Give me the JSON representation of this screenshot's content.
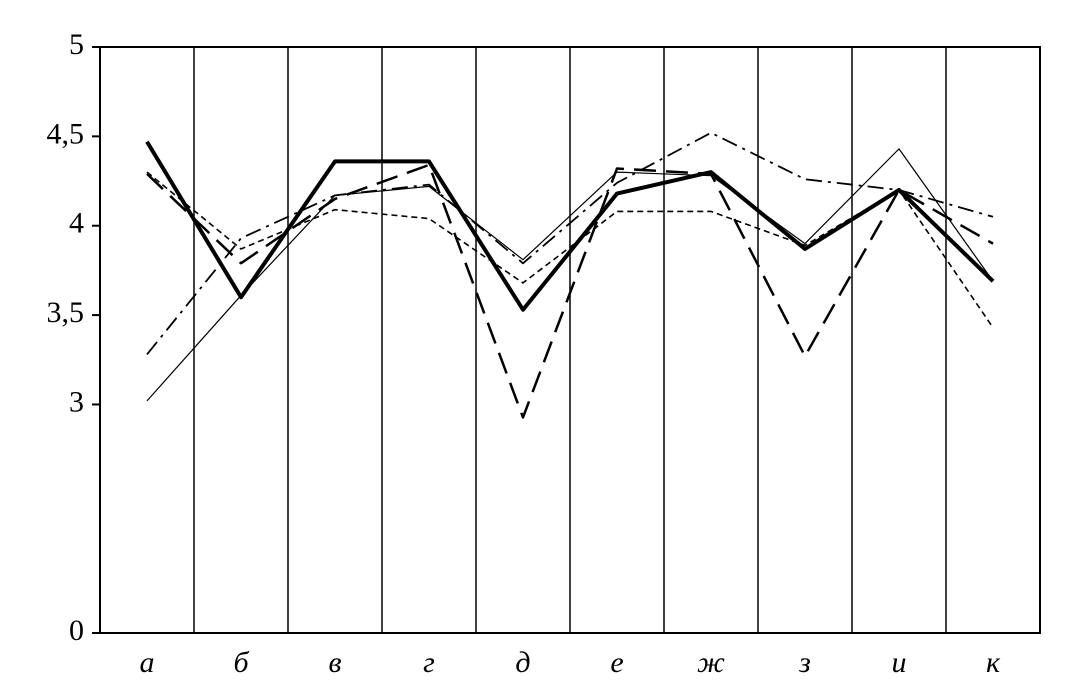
{
  "chart_data": {
    "type": "line",
    "categories": [
      "а",
      "б",
      "в",
      "г",
      "д",
      "е",
      "ж",
      "з",
      "и",
      "к"
    ],
    "ylim": [
      0,
      5
    ],
    "y_break": 3,
    "yticks": [
      0,
      3,
      {
        "value": 3.5,
        "label": "3,5"
      },
      4,
      {
        "value": 4.5,
        "label": "4,5"
      },
      5
    ],
    "grid": true,
    "series": [
      {
        "color": "#000000",
        "line_style": "solid",
        "width": 4,
        "values": [
          4.47,
          3.6,
          4.36,
          4.36,
          3.53,
          4.18,
          4.3,
          3.87,
          4.2,
          3.69
        ]
      },
      {
        "color": "#000000",
        "line_style": "dashed",
        "width": 2.5,
        "values": [
          4.29,
          3.79,
          4.15,
          4.34,
          2.83,
          4.32,
          4.29,
          3.27,
          4.2,
          3.9
        ]
      },
      {
        "color": "#000000",
        "line_style": "dashdot",
        "width": 1.8,
        "values": [
          3.28,
          3.93,
          4.17,
          4.23,
          3.79,
          4.24,
          4.52,
          4.26,
          4.2,
          4.05
        ]
      },
      {
        "color": "#000000",
        "line_style": "dotted",
        "width": 1.6,
        "values": [
          4.3,
          3.87,
          4.09,
          4.04,
          3.68,
          4.08,
          4.08,
          3.89,
          4.2,
          3.43
        ]
      },
      {
        "color": "#000000",
        "line_style": "solid",
        "width": 1.2,
        "values": [
          3.02,
          3.61,
          4.17,
          4.22,
          3.81,
          4.3,
          4.28,
          3.9,
          4.43,
          3.69
        ]
      }
    ]
  }
}
